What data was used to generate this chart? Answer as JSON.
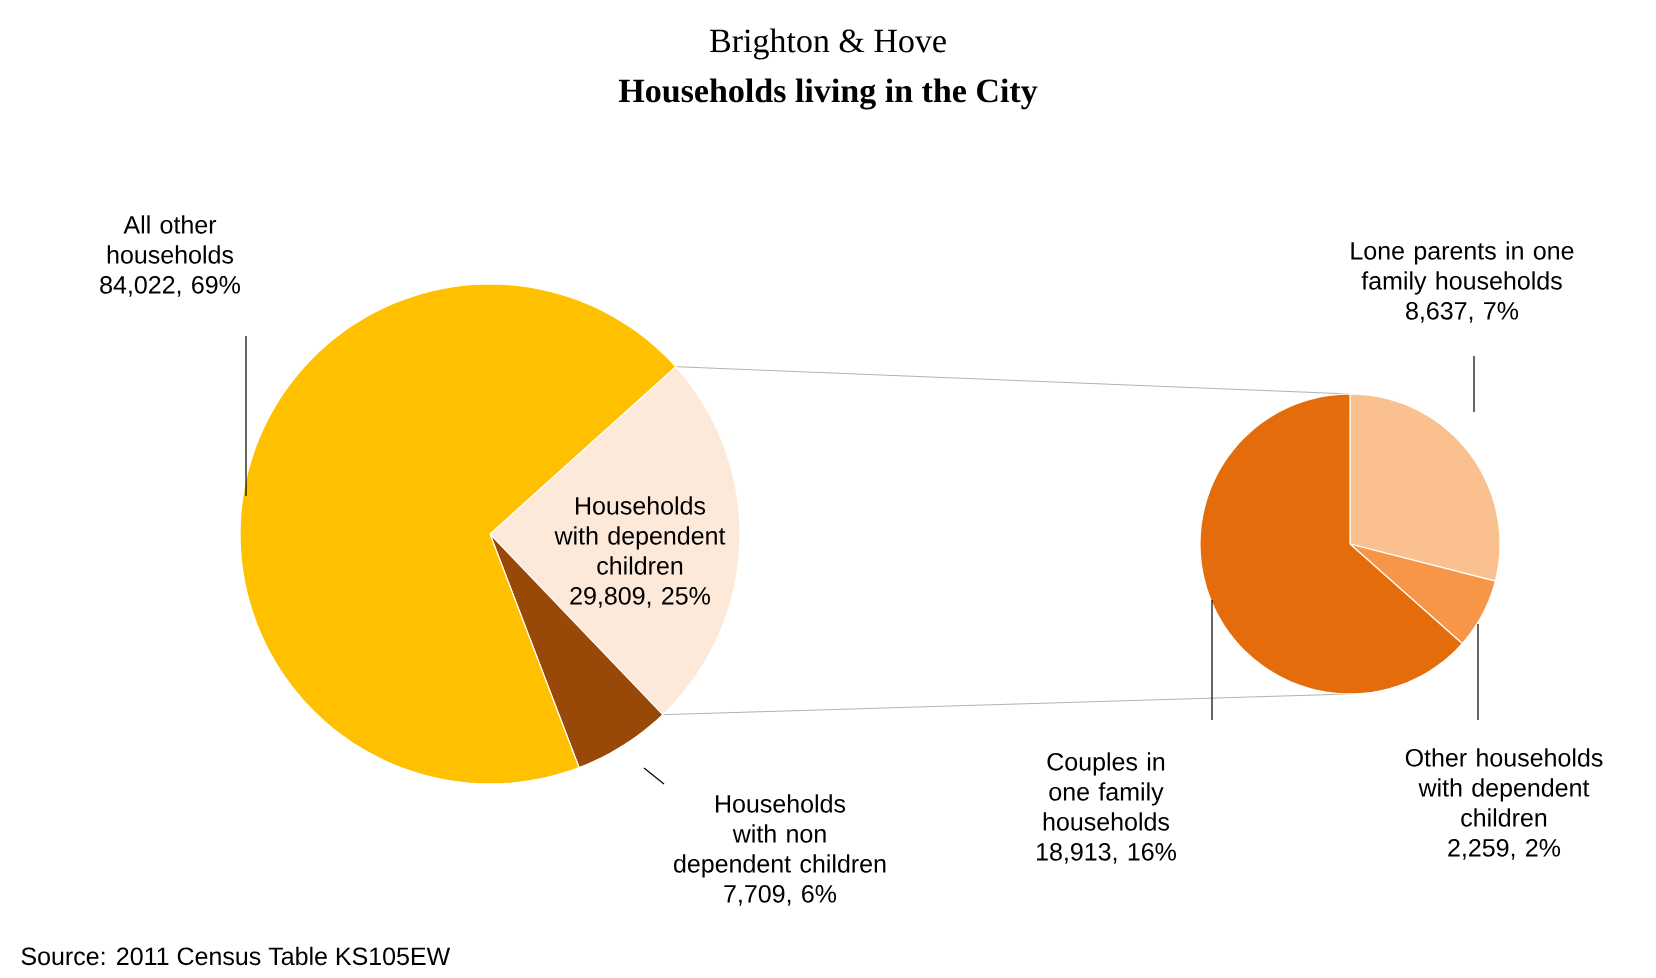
{
  "chart_data": [
    {
      "type": "pie",
      "title": "Brighton & Hove",
      "subtitle": "Households living in the City",
      "categories": [
        "Households  with dependent children",
        "Households with non dependent children",
        "All other households"
      ],
      "values": [
        29809,
        7709,
        84022
      ],
      "value_labels": [
        "29,809, 25%",
        "7,709, 6%",
        "84,022, 69%"
      ],
      "colors": [
        "#fde9d9",
        "#984807",
        "#ffc000"
      ],
      "annotations": [
        "Source: 2011 Census Table KS105EW"
      ]
    },
    {
      "type": "pie",
      "categories": [
        "Lone parents in one family households",
        "Other households with dependent children",
        "Couples in one family households"
      ],
      "values": [
        8637,
        2259,
        18913
      ],
      "value_labels": [
        "8,637, 7%",
        "2,259, 2%",
        "18,913, 16%"
      ],
      "colors": [
        "#fac090",
        "#f79646",
        "#e46c0a"
      ]
    }
  ]
}
